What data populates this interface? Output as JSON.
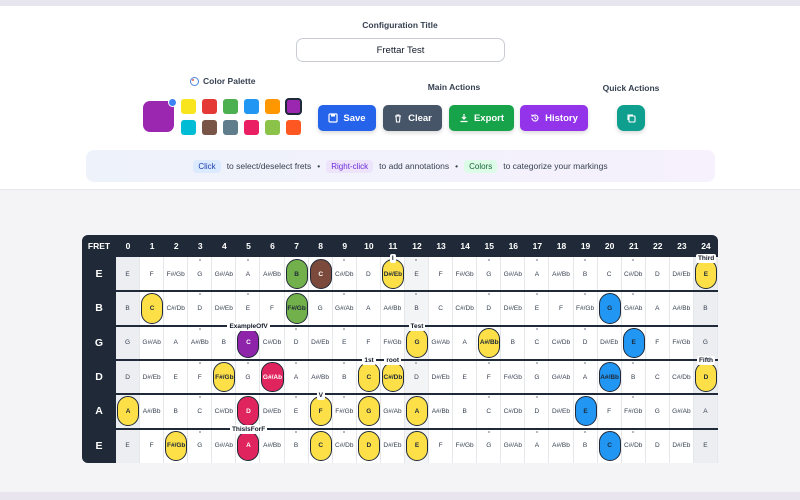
{
  "config": {
    "title_label": "Configuration Title",
    "title_value": "Frettar Test"
  },
  "palette": {
    "label": "Color Palette",
    "selected": "#9b27b0",
    "swatches": [
      "#f9e51e",
      "#e53935",
      "#4caf50",
      "#2196f3",
      "#ff9800",
      "#9b27b0",
      "#00bcd4",
      "#795548",
      "#607d8b",
      "#e91e63",
      "#8bc34a",
      "#ff5722"
    ]
  },
  "main_actions": {
    "label": "Main Actions",
    "save": "Save",
    "clear": "Clear",
    "export": "Export",
    "history": "History"
  },
  "quick_actions": {
    "label": "Quick Actions"
  },
  "hint": {
    "click": "Click",
    "click_text": "to select/deselect frets",
    "rclick": "Right-click",
    "rclick_text": "to add annotations",
    "colors": "Colors",
    "colors_text": "to categorize your markings",
    "sep": "•"
  },
  "fretboard": {
    "header_label": "FRET",
    "frets": [
      "0",
      "1",
      "2",
      "3",
      "4",
      "5",
      "6",
      "7",
      "8",
      "9",
      "10",
      "11",
      "12",
      "13",
      "14",
      "15",
      "16",
      "17",
      "18",
      "19",
      "20",
      "21",
      "22",
      "23",
      "24"
    ],
    "strings": [
      {
        "name": "E",
        "notes": [
          "E",
          "F",
          "F#/Gb",
          "G",
          "G#/Ab",
          "A",
          "A#/Bb",
          "B",
          "C",
          "C#/Db",
          "D",
          "D#/Eb",
          "E",
          "F",
          "F#/Gb",
          "G",
          "G#/Ab",
          "A",
          "A#/Bb",
          "B",
          "C",
          "C#/Db",
          "D",
          "D#/Eb",
          "E"
        ]
      },
      {
        "name": "B",
        "notes": [
          "B",
          "C",
          "C#/Db",
          "D",
          "D#/Eb",
          "E",
          "F",
          "F#/Gb",
          "G",
          "G#/Ab",
          "A",
          "A#/Bb",
          "B",
          "C",
          "C#/Db",
          "D",
          "D#/Eb",
          "E",
          "F",
          "F#/Gb",
          "G",
          "G#/Ab",
          "A",
          "A#/Bb",
          "B"
        ]
      },
      {
        "name": "G",
        "notes": [
          "G",
          "G#/Ab",
          "A",
          "A#/Bb",
          "B",
          "C",
          "C#/Db",
          "D",
          "D#/Eb",
          "E",
          "F",
          "F#/Gb",
          "G",
          "G#/Ab",
          "A",
          "A#/Bb",
          "B",
          "C",
          "C#/Db",
          "D",
          "D#/Eb",
          "E",
          "F",
          "F#/Gb",
          "G"
        ]
      },
      {
        "name": "D",
        "notes": [
          "D",
          "D#/Eb",
          "E",
          "F",
          "F#/Gb",
          "G",
          "G#/Ab",
          "A",
          "A#/Bb",
          "B",
          "C",
          "C#/Db",
          "D",
          "D#/Eb",
          "E",
          "F",
          "F#/Gb",
          "G",
          "G#/Ab",
          "A",
          "A#/Bb",
          "B",
          "C",
          "C#/Db",
          "D"
        ]
      },
      {
        "name": "A",
        "notes": [
          "A",
          "A#/Bb",
          "B",
          "C",
          "C#/Db",
          "D",
          "D#/Eb",
          "E",
          "F",
          "F#/Gb",
          "G",
          "G#/Ab",
          "A",
          "A#/Bb",
          "B",
          "C",
          "C#/Db",
          "D",
          "D#/Eb",
          "E",
          "F",
          "F#/Gb",
          "G",
          "G#/Ab",
          "A"
        ]
      },
      {
        "name": "E",
        "notes": [
          "E",
          "F",
          "F#/Gb",
          "G",
          "G#/Ab",
          "A",
          "A#/Bb",
          "B",
          "C",
          "C#/Db",
          "D",
          "D#/Eb",
          "E",
          "F",
          "F#/Gb",
          "G",
          "G#/Ab",
          "A",
          "A#/Bb",
          "B",
          "C",
          "C#/Db",
          "D",
          "D#/Eb",
          "E"
        ]
      }
    ],
    "marks": [
      {
        "s": 0,
        "f": 7,
        "color": "#71b04a"
      },
      {
        "s": 0,
        "f": 8,
        "color": "#7b4a3c"
      },
      {
        "s": 0,
        "f": 11,
        "color": "#fde047"
      },
      {
        "s": 0,
        "f": 24,
        "color": "#fde047"
      },
      {
        "s": 1,
        "f": 1,
        "color": "#fde047"
      },
      {
        "s": 1,
        "f": 7,
        "color": "#71b04a"
      },
      {
        "s": 1,
        "f": 20,
        "color": "#2196f3"
      },
      {
        "s": 2,
        "f": 5,
        "color": "#8e24aa"
      },
      {
        "s": 2,
        "f": 12,
        "color": "#fde047"
      },
      {
        "s": 2,
        "f": 15,
        "color": "#fde047"
      },
      {
        "s": 2,
        "f": 21,
        "color": "#2196f3"
      },
      {
        "s": 3,
        "f": 4,
        "color": "#fde047"
      },
      {
        "s": 3,
        "f": 6,
        "color": "#e0245e"
      },
      {
        "s": 3,
        "f": 10,
        "color": "#fde047"
      },
      {
        "s": 3,
        "f": 11,
        "color": "#fde047"
      },
      {
        "s": 3,
        "f": 20,
        "color": "#2196f3"
      },
      {
        "s": 3,
        "f": 24,
        "color": "#fde047"
      },
      {
        "s": 4,
        "f": 0,
        "color": "#fde047"
      },
      {
        "s": 4,
        "f": 5,
        "color": "#e0245e"
      },
      {
        "s": 4,
        "f": 8,
        "color": "#fde047"
      },
      {
        "s": 4,
        "f": 10,
        "color": "#fde047"
      },
      {
        "s": 4,
        "f": 12,
        "color": "#fde047"
      },
      {
        "s": 4,
        "f": 19,
        "color": "#2196f3"
      },
      {
        "s": 5,
        "f": 2,
        "color": "#fde047"
      },
      {
        "s": 5,
        "f": 5,
        "color": "#e0245e"
      },
      {
        "s": 5,
        "f": 8,
        "color": "#fde047"
      },
      {
        "s": 5,
        "f": 10,
        "color": "#fde047"
      },
      {
        "s": 5,
        "f": 12,
        "color": "#fde047"
      },
      {
        "s": 5,
        "f": 20,
        "color": "#2196f3"
      }
    ],
    "annotations": [
      {
        "s": 0,
        "f": 11,
        "text": "I"
      },
      {
        "s": 0,
        "f": 24,
        "text": "Third"
      },
      {
        "s": 2,
        "f": 5,
        "text": "ExampleOfV"
      },
      {
        "s": 2,
        "f": 12,
        "text": "Test"
      },
      {
        "s": 3,
        "f": 10,
        "text": "1st"
      },
      {
        "s": 3,
        "f": 11,
        "text": "root"
      },
      {
        "s": 3,
        "f": 24,
        "text": "Fifth"
      },
      {
        "s": 4,
        "f": 8,
        "text": "V"
      },
      {
        "s": 5,
        "f": 5,
        "text": "ThisIsForF"
      }
    ],
    "inlays": [
      3,
      5,
      7,
      9,
      12,
      15,
      17,
      19,
      21
    ]
  }
}
